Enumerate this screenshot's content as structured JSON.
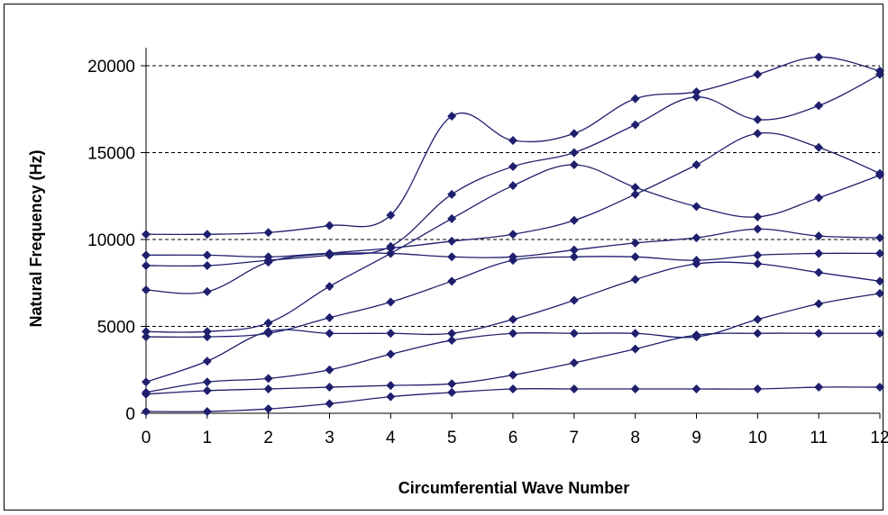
{
  "chart_data": {
    "type": "line",
    "title": "",
    "xlabel": "Circumferential Wave Number",
    "ylabel": "Natural Frequency (Hz)",
    "x": [
      0,
      1,
      2,
      3,
      4,
      5,
      6,
      7,
      8,
      9,
      10,
      11,
      12
    ],
    "xlim": [
      0,
      12
    ],
    "ylim": [
      0,
      20000
    ],
    "x_ticks": [
      "0",
      "1",
      "2",
      "3",
      "4",
      "5",
      "6",
      "7",
      "8",
      "9",
      "10",
      "11",
      "12"
    ],
    "y_ticks": [
      "0",
      "5000",
      "10000",
      "15000",
      "20000"
    ],
    "y_tick_values": [
      0,
      5000,
      10000,
      15000,
      20000
    ],
    "grid": "horizontal dashed at 5000, 10000, 15000, 20000",
    "legend": "none",
    "line_color": "#1f1f6e",
    "marker": "diamond",
    "series": [
      {
        "values": [
          100,
          100,
          250,
          550,
          950,
          1200,
          1400,
          1400,
          1400,
          1400,
          1400,
          1500,
          1500
        ]
      },
      {
        "values": [
          1100,
          1300,
          1400,
          1500,
          1600,
          1700,
          2200,
          2900,
          3700,
          4500,
          4600,
          4600,
          4600
        ]
      },
      {
        "values": [
          1200,
          1800,
          2000,
          2500,
          3400,
          4200,
          4600,
          4600,
          4600,
          4400,
          5400,
          6300,
          6900
        ]
      },
      {
        "values": [
          1800,
          3000,
          4700,
          4600,
          4600,
          4600,
          5400,
          6500,
          7700,
          8600,
          8600,
          8100,
          7600
        ]
      },
      {
        "values": [
          4400,
          4400,
          4600,
          5500,
          6400,
          7600,
          8800,
          9000,
          9000,
          8800,
          9100,
          9200,
          9200
        ]
      },
      {
        "values": [
          4700,
          4700,
          5200,
          7300,
          9200,
          11200,
          13100,
          14300,
          13000,
          11900,
          11300,
          12400,
          13700
        ]
      },
      {
        "values": [
          7100,
          7000,
          8700,
          9200,
          9500,
          9900,
          10300,
          11100,
          12600,
          14300,
          16100,
          15300,
          13800
        ]
      },
      {
        "values": [
          8500,
          8500,
          8800,
          9100,
          9600,
          12600,
          14200,
          15000,
          16600,
          18200,
          16900,
          17700,
          19500
        ]
      },
      {
        "values": [
          9100,
          9100,
          9000,
          9200,
          9200,
          9000,
          9000,
          9400,
          9800,
          10100,
          10600,
          10200,
          10100
        ]
      },
      {
        "values": [
          10300,
          10300,
          10400,
          10800,
          11400,
          17100,
          15700,
          16100,
          18100,
          18500,
          19500,
          20500,
          19700
        ]
      }
    ]
  }
}
